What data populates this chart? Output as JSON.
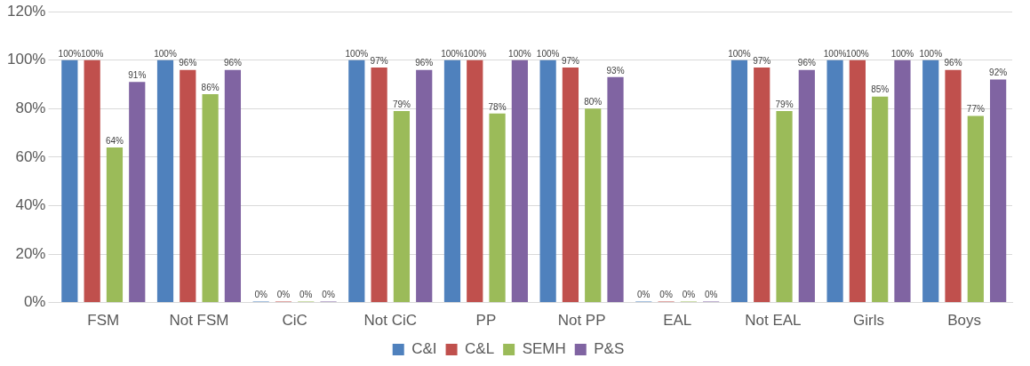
{
  "chart_data": {
    "type": "bar",
    "categories": [
      "FSM",
      "Not FSM",
      "CiC",
      "Not CiC",
      "PP",
      "Not PP",
      "EAL",
      "Not EAL",
      "Girls",
      "Boys"
    ],
    "series": [
      {
        "name": "C&I",
        "color": "#4f81bd",
        "values": [
          100,
          100,
          0,
          100,
          100,
          100,
          0,
          100,
          100,
          100
        ],
        "value_labels": [
          "100%",
          "100%",
          "0%",
          "100%",
          "100%",
          "100%",
          "0%",
          "100%",
          "100%",
          "100%"
        ]
      },
      {
        "name": "C&L",
        "color": "#c0504d",
        "values": [
          100,
          96,
          0,
          97,
          100,
          97,
          0,
          97,
          100,
          96
        ],
        "value_labels": [
          "100%",
          "96%",
          "0%",
          "97%",
          "100%",
          "97%",
          "0%",
          "97%",
          "100%",
          "96%"
        ]
      },
      {
        "name": "SEMH",
        "color": "#9bbb59",
        "values": [
          64,
          86,
          0,
          79,
          78,
          80,
          0,
          79,
          85,
          77
        ],
        "value_labels": [
          "64%",
          "86%",
          "0%",
          "79%",
          "78%",
          "80%",
          "0%",
          "79%",
          "85%",
          "77%"
        ]
      },
      {
        "name": "P&S",
        "color": "#8064a2",
        "values": [
          91,
          96,
          0,
          96,
          100,
          93,
          0,
          96,
          100,
          92
        ],
        "value_labels": [
          "91%",
          "96%",
          "0%",
          "96%",
          "100%",
          "93%",
          "0%",
          "96%",
          "100%",
          "92%"
        ]
      }
    ],
    "ylim": [
      0,
      120
    ],
    "yticks": [
      {
        "value": 0,
        "label": "0%"
      },
      {
        "value": 20,
        "label": "20%"
      },
      {
        "value": 40,
        "label": "40%"
      },
      {
        "value": 60,
        "label": "60%"
      },
      {
        "value": 80,
        "label": "80%"
      },
      {
        "value": 100,
        "label": "100%"
      },
      {
        "value": 120,
        "label": "120%"
      }
    ],
    "grid": "y",
    "legend": "bottom"
  }
}
